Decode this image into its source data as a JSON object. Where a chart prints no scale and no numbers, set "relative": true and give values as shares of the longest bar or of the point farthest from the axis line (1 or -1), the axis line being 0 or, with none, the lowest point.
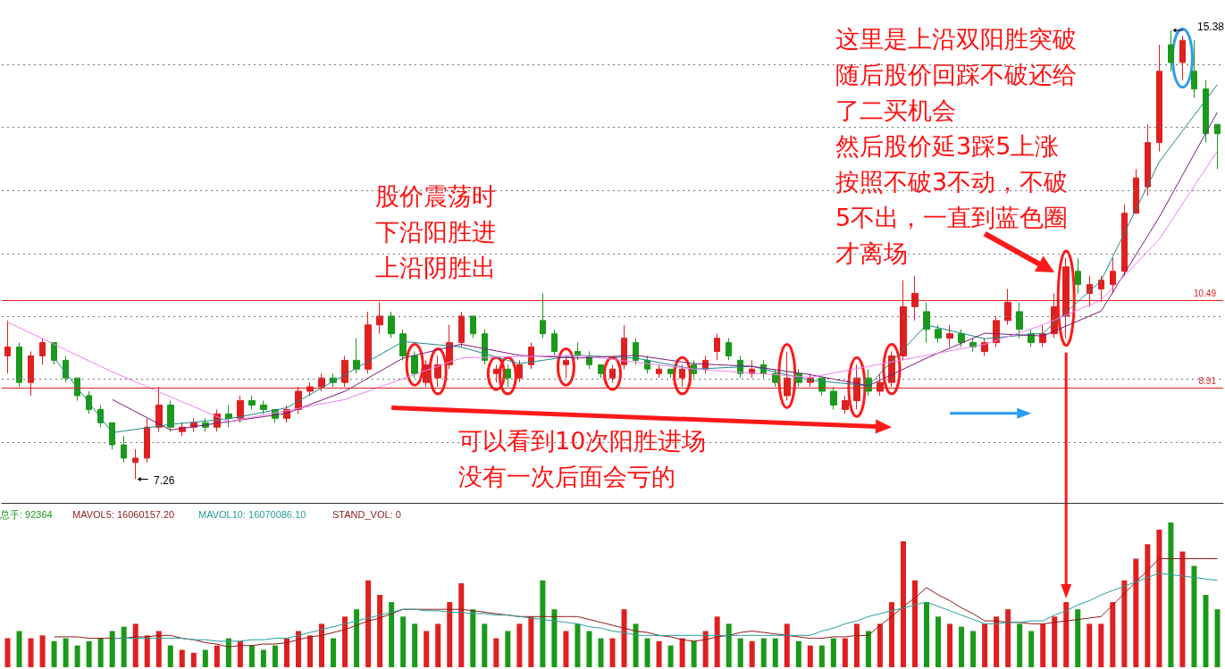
{
  "chart_data": [
    {
      "type": "candlestick",
      "categories": [
        null,
        null,
        null,
        null,
        null,
        null,
        null,
        null,
        null,
        null,
        null,
        null,
        null,
        null,
        null,
        null,
        null,
        null,
        null,
        null,
        null,
        null,
        null,
        null,
        null,
        null,
        null,
        null,
        null,
        null,
        null,
        null,
        null,
        null,
        null,
        null,
        null,
        null,
        null,
        null,
        null,
        null,
        null,
        null,
        null,
        null,
        null,
        null,
        null,
        null,
        null,
        null,
        null,
        null,
        null,
        null,
        null,
        null,
        null,
        null,
        null,
        null,
        null,
        null,
        null,
        null,
        null,
        null,
        null,
        null,
        null,
        null,
        null,
        null,
        null,
        null,
        null,
        null,
        null,
        null,
        null,
        null,
        null,
        null,
        null,
        null,
        null,
        null,
        null,
        null,
        null,
        null,
        null,
        null,
        null,
        null,
        null,
        null,
        null,
        null,
        null,
        null,
        null,
        null,
        null
      ],
      "ohlc": [
        [
          9.49,
          10.13,
          9.17,
          9.65
        ],
        [
          9.65,
          9.73,
          8.93,
          9.01
        ],
        [
          9.01,
          9.57,
          8.77,
          9.49
        ],
        [
          9.49,
          9.81,
          9.33,
          9.73
        ],
        [
          9.73,
          9.73,
          9.33,
          9.41
        ],
        [
          9.41,
          9.49,
          9.01,
          9.09
        ],
        [
          9.09,
          9.09,
          8.68,
          8.77
        ],
        [
          8.77,
          8.85,
          8.44,
          8.52
        ],
        [
          8.52,
          8.6,
          8.2,
          8.28
        ],
        [
          8.28,
          8.28,
          7.8,
          7.88
        ],
        [
          7.88,
          8.04,
          7.56,
          7.64
        ],
        [
          7.56,
          7.8,
          7.26,
          7.64
        ],
        [
          7.64,
          8.36,
          7.56,
          8.2
        ],
        [
          8.2,
          8.93,
          8.12,
          8.6
        ],
        [
          8.6,
          8.68,
          8.12,
          8.2
        ],
        [
          8.12,
          8.28,
          8.04,
          8.2
        ],
        [
          8.2,
          8.36,
          8.12,
          8.28
        ],
        [
          8.28,
          8.36,
          8.12,
          8.2
        ],
        [
          8.2,
          8.52,
          8.12,
          8.44
        ],
        [
          8.44,
          8.6,
          8.2,
          8.36
        ],
        [
          8.36,
          8.77,
          8.28,
          8.68
        ],
        [
          8.68,
          8.77,
          8.52,
          8.6
        ],
        [
          8.6,
          8.68,
          8.44,
          8.52
        ],
        [
          8.52,
          8.52,
          8.28,
          8.36
        ],
        [
          8.36,
          8.6,
          8.28,
          8.52
        ],
        [
          8.52,
          8.93,
          8.44,
          8.85
        ],
        [
          8.85,
          9.01,
          8.77,
          8.93
        ],
        [
          8.93,
          9.17,
          8.85,
          9.09
        ],
        [
          9.09,
          9.17,
          8.93,
          9.01
        ],
        [
          9.01,
          9.49,
          8.93,
          9.41
        ],
        [
          9.41,
          9.81,
          9.17,
          9.25
        ],
        [
          9.25,
          10.29,
          9.17,
          10.05
        ],
        [
          10.05,
          10.46,
          9.89,
          10.21
        ],
        [
          10.21,
          10.29,
          9.81,
          9.89
        ],
        [
          9.89,
          9.97,
          9.41,
          9.49
        ],
        [
          9.49,
          9.57,
          9.09,
          9.17
        ],
        [
          9.01,
          9.41,
          8.93,
          9.33
        ],
        [
          9.09,
          9.49,
          8.93,
          9.33
        ],
        [
          9.33,
          10.05,
          9.25,
          9.73
        ],
        [
          9.73,
          10.29,
          9.65,
          10.21
        ],
        [
          10.21,
          10.21,
          9.81,
          9.89
        ],
        [
          9.89,
          9.97,
          9.33,
          9.41
        ],
        [
          9.17,
          9.33,
          9.01,
          9.25
        ],
        [
          9.25,
          9.33,
          8.93,
          9.09
        ],
        [
          9.09,
          9.41,
          9.01,
          9.33
        ],
        [
          9.33,
          9.73,
          9.25,
          9.65
        ],
        [
          10.13,
          10.62,
          9.81,
          9.89
        ],
        [
          9.89,
          9.97,
          9.49,
          9.57
        ],
        [
          9.33,
          9.49,
          9.09,
          9.41
        ],
        [
          9.57,
          9.73,
          9.41,
          9.49
        ],
        [
          9.49,
          9.57,
          9.25,
          9.33
        ],
        [
          9.33,
          9.33,
          9.09,
          9.17
        ],
        [
          9.09,
          9.33,
          9.01,
          9.25
        ],
        [
          9.33,
          10.05,
          9.25,
          9.81
        ],
        [
          9.73,
          9.81,
          9.33,
          9.41
        ],
        [
          9.41,
          9.49,
          9.17,
          9.25
        ],
        [
          9.17,
          9.33,
          9.09,
          9.25
        ],
        [
          9.25,
          9.25,
          9.09,
          9.17
        ],
        [
          9.09,
          9.33,
          8.93,
          9.25
        ],
        [
          9.33,
          9.41,
          9.09,
          9.17
        ],
        [
          9.25,
          9.49,
          9.17,
          9.41
        ],
        [
          9.57,
          9.89,
          9.41,
          9.81
        ],
        [
          9.73,
          9.81,
          9.41,
          9.49
        ],
        [
          9.41,
          9.49,
          9.09,
          9.17
        ],
        [
          9.17,
          9.41,
          9.09,
          9.25
        ],
        [
          9.33,
          9.41,
          9.09,
          9.17
        ],
        [
          9.17,
          9.25,
          8.93,
          9.01
        ],
        [
          8.77,
          9.57,
          8.68,
          9.09
        ],
        [
          9.17,
          9.25,
          8.93,
          9.01
        ],
        [
          9.01,
          9.17,
          8.93,
          9.09
        ],
        [
          9.09,
          9.09,
          8.77,
          8.85
        ],
        [
          8.85,
          8.93,
          8.52,
          8.6
        ],
        [
          8.52,
          8.77,
          8.44,
          8.68
        ],
        [
          8.68,
          9.33,
          8.52,
          9.09
        ],
        [
          9.09,
          9.25,
          8.77,
          8.85
        ],
        [
          8.85,
          9.17,
          8.77,
          9.01
        ],
        [
          9.01,
          9.57,
          8.93,
          9.49
        ],
        [
          9.49,
          10.86,
          9.41,
          10.38
        ],
        [
          10.38,
          10.94,
          10.13,
          10.62
        ],
        [
          10.29,
          10.46,
          9.73,
          9.97
        ],
        [
          9.97,
          10.05,
          9.73,
          9.81
        ],
        [
          9.81,
          10.05,
          9.65,
          9.89
        ],
        [
          9.89,
          9.97,
          9.65,
          9.73
        ],
        [
          9.73,
          9.81,
          9.57,
          9.65
        ],
        [
          9.57,
          9.81,
          9.49,
          9.73
        ],
        [
          9.73,
          10.21,
          9.65,
          10.13
        ],
        [
          10.13,
          10.7,
          10.05,
          10.46
        ],
        [
          10.29,
          10.46,
          9.81,
          9.97
        ],
        [
          9.89,
          9.97,
          9.65,
          9.73
        ],
        [
          9.73,
          10.05,
          9.65,
          9.89
        ],
        [
          9.89,
          10.62,
          9.81,
          10.38
        ],
        [
          10.21,
          11.26,
          9.81,
          11.1
        ],
        [
          11.02,
          11.26,
          10.62,
          10.78
        ],
        [
          10.62,
          10.94,
          10.38,
          10.78
        ],
        [
          10.7,
          10.94,
          10.46,
          10.86
        ],
        [
          10.78,
          11.26,
          10.62,
          11.02
        ],
        [
          11.02,
          12.23,
          10.94,
          12.07
        ],
        [
          12.07,
          12.87,
          12.07,
          12.71
        ],
        [
          12.55,
          13.68,
          12.39,
          13.35
        ],
        [
          13.35,
          15.12,
          13.19,
          14.64
        ],
        [
          15.12,
          15.38,
          14.64,
          14.8
        ],
        [
          14.8,
          15.28,
          14.48,
          15.2
        ],
        [
          14.64,
          15.2,
          14.16,
          14.32
        ],
        [
          14.32,
          14.48,
          13.35,
          13.51
        ],
        [
          13.68,
          13.68,
          12.87,
          13.51
        ]
      ],
      "colors": [
        "#e02020",
        "#1a9a1a",
        "#e02020",
        "#e02020",
        "#1a9a1a",
        "#1a9a1a",
        "#1a9a1a",
        "#1a9a1a",
        "#1a9a1a",
        "#1a9a1a",
        "#1a9a1a",
        "#e02020",
        "#e02020",
        "#e02020",
        "#1a9a1a",
        "#e02020",
        "#e02020",
        "#1a9a1a",
        "#e02020",
        "#1a9a1a",
        "#e02020",
        "#1a9a1a",
        "#1a9a1a",
        "#1a9a1a",
        "#e02020",
        "#e02020",
        "#e02020",
        "#e02020",
        "#1a9a1a",
        "#e02020",
        "#1a9a1a",
        "#e02020",
        "#e02020",
        "#1a9a1a",
        "#1a9a1a",
        "#1a9a1a",
        "#e02020",
        "#e02020",
        "#e02020",
        "#e02020",
        "#1a9a1a",
        "#1a9a1a",
        "#e02020",
        "#1a9a1a",
        "#e02020",
        "#e02020",
        "#1a9a1a",
        "#1a9a1a",
        "#e02020",
        "#1a9a1a",
        "#1a9a1a",
        "#1a9a1a",
        "#e02020",
        "#e02020",
        "#1a9a1a",
        "#1a9a1a",
        "#e02020",
        "#1a9a1a",
        "#e02020",
        "#1a9a1a",
        "#e02020",
        "#e02020",
        "#1a9a1a",
        "#1a9a1a",
        "#e02020",
        "#1a9a1a",
        "#1a9a1a",
        "#e02020",
        "#1a9a1a",
        "#e02020",
        "#1a9a1a",
        "#1a9a1a",
        "#e02020",
        "#e02020",
        "#1a9a1a",
        "#e02020",
        "#e02020",
        "#e02020",
        "#e02020",
        "#1a9a1a",
        "#1a9a1a",
        "#e02020",
        "#1a9a1a",
        "#1a9a1a",
        "#e02020",
        "#e02020",
        "#e02020",
        "#1a9a1a",
        "#1a9a1a",
        "#e02020",
        "#e02020",
        "#e02020",
        "#1a9a1a",
        "#e02020",
        "#e02020",
        "#e02020",
        "#e02020",
        "#e02020",
        "#e02020",
        "#e02020",
        "#1a9a1a",
        "#e02020",
        "#1a9a1a",
        "#1a9a1a",
        "#1a9a1a"
      ],
      "series": [
        {
          "type": "line",
          "color": "#1a8a8a",
          "values": [
            null,
            null,
            null,
            null,
            9.45,
            9.18,
            8.91,
            8.64,
            8.37,
            8.1,
            8.13,
            8.16,
            8.19,
            8.22,
            8.25,
            8.27,
            8.29,
            8.31,
            8.33,
            8.35,
            8.39,
            8.43,
            8.47,
            8.51,
            8.55,
            8.67,
            8.79,
            8.91,
            9.03,
            9.15,
            9.27,
            9.39,
            9.51,
            9.63,
            9.75,
            9.73,
            9.71,
            9.69,
            9.67,
            9.65,
            9.59,
            9.53,
            9.47,
            9.41,
            9.35,
            9.38,
            9.41,
            9.44,
            9.47,
            9.5,
            9.49,
            9.48,
            9.47,
            9.46,
            9.45,
            9.41,
            9.37,
            9.33,
            9.29,
            9.25,
            9.26,
            9.27,
            9.28,
            9.29,
            9.3,
            9.25,
            9.2,
            9.15,
            9.1,
            9.05,
            9.03,
            9.01,
            8.99,
            8.97,
            8.95,
            9.17,
            9.39,
            9.61,
            9.83,
            10.05,
            10.0,
            9.95,
            9.9,
            9.85,
            9.8,
            9.82,
            9.84,
            9.86,
            9.88,
            9.9,
            10.09,
            10.28,
            10.47,
            10.66,
            10.85,
            11.28,
            11.71,
            12.14,
            12.57,
            13.0,
            13.28,
            13.56,
            13.84,
            14.12,
            14.4
          ]
        },
        {
          "type": "line",
          "color": "#7a1a7a",
          "values": [
            null,
            null,
            null,
            null,
            null,
            null,
            null,
            null,
            null,
            8.7,
            8.59,
            8.48,
            8.37,
            8.26,
            8.15,
            8.18,
            8.21,
            8.24,
            8.27,
            8.3,
            8.33,
            8.36,
            8.39,
            8.42,
            8.45,
            8.53,
            8.61,
            8.69,
            8.77,
            8.85,
            8.97,
            9.09,
            9.21,
            9.33,
            9.45,
            9.5,
            9.55,
            9.6,
            9.65,
            9.7,
            9.66,
            9.62,
            9.58,
            9.54,
            9.5,
            9.49,
            9.48,
            9.47,
            9.46,
            9.45,
            9.46,
            9.47,
            9.48,
            9.49,
            9.5,
            9.47,
            9.44,
            9.41,
            9.38,
            9.35,
            9.34,
            9.33,
            9.32,
            9.31,
            9.3,
            9.27,
            9.24,
            9.21,
            9.18,
            9.15,
            9.11,
            9.07,
            9.03,
            8.99,
            8.95,
            9.05,
            9.15,
            9.25,
            9.35,
            9.45,
            9.54,
            9.63,
            9.72,
            9.81,
            9.9,
            9.89,
            9.88,
            9.87,
            9.86,
            9.85,
            9.94,
            10.03,
            10.12,
            10.21,
            10.3,
            10.64,
            10.98,
            11.32,
            11.66,
            12.0,
            12.38,
            12.76,
            13.14,
            13.52,
            13.9
          ]
        },
        {
          "type": "line",
          "color": "#f080f0",
          "values": [
            10.1,
            10.0,
            9.9,
            9.8,
            9.7,
            9.6,
            9.5,
            9.4,
            9.3,
            9.2,
            9.11,
            9.02,
            8.93,
            8.84,
            8.75,
            8.66,
            8.57,
            8.48,
            8.39,
            8.3,
            8.34,
            8.38,
            8.42,
            8.46,
            8.5,
            8.54,
            8.58,
            8.62,
            8.66,
            8.7,
            8.78,
            8.85,
            8.93,
            9.0,
            9.08,
            9.15,
            9.23,
            9.3,
            9.38,
            9.45,
            9.46,
            9.46,
            9.47,
            9.47,
            9.48,
            9.48,
            9.49,
            9.49,
            9.5,
            9.5,
            9.48,
            9.45,
            9.43,
            9.4,
            9.38,
            9.35,
            9.33,
            9.3,
            9.28,
            9.25,
            9.24,
            9.22,
            9.21,
            9.19,
            9.18,
            9.16,
            9.15,
            9.13,
            9.12,
            9.1,
            9.14,
            9.18,
            9.22,
            9.26,
            9.3,
            9.34,
            9.38,
            9.42,
            9.46,
            9.5,
            9.54,
            9.58,
            9.62,
            9.66,
            9.7,
            9.77,
            9.84,
            9.91,
            9.98,
            10.05,
            10.14,
            10.23,
            10.32,
            10.41,
            10.5,
            10.72,
            10.94,
            11.16,
            11.38,
            11.6,
            11.92,
            12.24,
            12.56,
            12.88,
            13.2
          ]
        }
      ],
      "ylim": [
        6.83,
        15.93
      ],
      "yticks": [
        {
          "value": 7.93,
          "label": null
        },
        {
          "value": 8.91,
          "label": "8.91"
        },
        {
          "value": 9.07,
          "label": null
        },
        {
          "value": 10.21,
          "label": null
        },
        {
          "value": 10.49,
          "label": "10.49"
        },
        {
          "value": 11.34,
          "label": null
        },
        {
          "value": 12.48,
          "label": null
        },
        {
          "value": 13.63,
          "label": null
        },
        {
          "value": 14.77,
          "label": null
        }
      ],
      "grid": "y",
      "tick_labels": "y",
      "annotations": [
        "股价震荡时",
        "下沿阳胜进",
        "上沿阴胜出",
        "这里是上沿双阳胜突破",
        "随后股价回踩不破还给",
        "了二买机会",
        "然后股价延3踩5上涨",
        "按照不破3不动，不破",
        "5不出，一直到蓝色圈",
        "才离场",
        "可以看到10次阳胜进场",
        "没有一次后面会亏的",
        "15.38",
        "7.26"
      ]
    },
    {
      "type": "bar",
      "relative": true,
      "categories": [
        null,
        null,
        null,
        null,
        null,
        null,
        null,
        null,
        null,
        null,
        null,
        null,
        null,
        null,
        null,
        null,
        null,
        null,
        null,
        null,
        null,
        null,
        null,
        null,
        null,
        null,
        null,
        null,
        null,
        null,
        null,
        null,
        null,
        null,
        null,
        null,
        null,
        null,
        null,
        null,
        null,
        null,
        null,
        null,
        null,
        null,
        null,
        null,
        null,
        null,
        null,
        null,
        null,
        null,
        null,
        null,
        null,
        null,
        null,
        null,
        null,
        null,
        null,
        null,
        null,
        null,
        null,
        null,
        null,
        null,
        null,
        null,
        null,
        null,
        null,
        null,
        null,
        null,
        null,
        null,
        null,
        null,
        null,
        null,
        null,
        null,
        null,
        null,
        null,
        null,
        null,
        null,
        null,
        null,
        null,
        null,
        null,
        null,
        null,
        null,
        null,
        null,
        null,
        null,
        null
      ],
      "series": [
        {
          "name": "总手: 92364",
          "color": "#1a9a1a",
          "values": [
            0.2,
            0.25,
            0.2,
            0.22,
            0.18,
            0.2,
            0.15,
            0.18,
            0.2,
            0.25,
            0.28,
            0.3,
            0.22,
            0.25,
            0.15,
            0.12,
            0.1,
            0.12,
            0.15,
            0.2,
            0.18,
            0.15,
            0.12,
            0.15,
            0.2,
            0.25,
            0.22,
            0.3,
            0.2,
            0.35,
            0.4,
            0.6,
            0.5,
            0.45,
            0.35,
            0.3,
            0.25,
            0.3,
            0.45,
            0.58,
            0.4,
            0.3,
            0.2,
            0.25,
            0.3,
            0.35,
            0.6,
            0.4,
            0.25,
            0.3,
            0.25,
            0.2,
            0.2,
            0.4,
            0.3,
            0.2,
            0.18,
            0.15,
            0.2,
            0.18,
            0.25,
            0.35,
            0.3,
            0.2,
            0.18,
            0.2,
            0.2,
            0.3,
            0.18,
            0.15,
            0.15,
            0.2,
            0.2,
            0.3,
            0.25,
            0.3,
            0.45,
            0.87,
            0.6,
            0.45,
            0.35,
            0.3,
            0.28,
            0.25,
            0.3,
            0.35,
            0.4,
            0.3,
            0.25,
            0.3,
            0.35,
            0.45,
            0.4,
            0.3,
            0.3,
            0.45,
            0.6,
            0.75,
            0.85,
            0.95,
            1,
            0.8,
            0.7,
            0.5,
            0.4
          ],
          "colors": [
            "#e02020",
            "#1a9a1a",
            "#e02020",
            "#e02020",
            "#1a9a1a",
            "#1a9a1a",
            "#1a9a1a",
            "#1a9a1a",
            "#1a9a1a",
            "#1a9a1a",
            "#1a9a1a",
            "#e02020",
            "#e02020",
            "#e02020",
            "#1a9a1a",
            "#e02020",
            "#e02020",
            "#1a9a1a",
            "#e02020",
            "#1a9a1a",
            "#e02020",
            "#1a9a1a",
            "#1a9a1a",
            "#1a9a1a",
            "#e02020",
            "#e02020",
            "#e02020",
            "#e02020",
            "#1a9a1a",
            "#e02020",
            "#1a9a1a",
            "#e02020",
            "#e02020",
            "#1a9a1a",
            "#1a9a1a",
            "#1a9a1a",
            "#e02020",
            "#e02020",
            "#e02020",
            "#e02020",
            "#1a9a1a",
            "#1a9a1a",
            "#e02020",
            "#1a9a1a",
            "#e02020",
            "#e02020",
            "#1a9a1a",
            "#1a9a1a",
            "#e02020",
            "#1a9a1a",
            "#1a9a1a",
            "#1a9a1a",
            "#e02020",
            "#e02020",
            "#1a9a1a",
            "#1a9a1a",
            "#e02020",
            "#1a9a1a",
            "#e02020",
            "#1a9a1a",
            "#e02020",
            "#e02020",
            "#1a9a1a",
            "#1a9a1a",
            "#e02020",
            "#1a9a1a",
            "#1a9a1a",
            "#e02020",
            "#1a9a1a",
            "#e02020",
            "#1a9a1a",
            "#1a9a1a",
            "#e02020",
            "#e02020",
            "#1a9a1a",
            "#e02020",
            "#e02020",
            "#e02020",
            "#e02020",
            "#1a9a1a",
            "#1a9a1a",
            "#e02020",
            "#1a9a1a",
            "#1a9a1a",
            "#e02020",
            "#e02020",
            "#e02020",
            "#1a9a1a",
            "#1a9a1a",
            "#e02020",
            "#e02020",
            "#e02020",
            "#1a9a1a",
            "#e02020",
            "#e02020",
            "#e02020",
            "#e02020",
            "#e02020",
            "#e02020",
            "#e02020",
            "#1a9a1a",
            "#e02020",
            "#1a9a1a",
            "#1a9a1a",
            "#1a9a1a"
          ]
        },
        {
          "type": "line",
          "name": "MAVOL5: 16060157.20",
          "color": "#8b1a1a",
          "values": [
            null,
            null,
            null,
            null,
            0.21,
            0.21,
            0.21,
            0.2,
            0.2,
            0.2,
            0.2,
            0.21,
            0.21,
            0.22,
            0.22,
            0.2,
            0.19,
            0.17,
            0.16,
            0.14,
            0.15,
            0.15,
            0.16,
            0.16,
            0.17,
            0.19,
            0.21,
            0.22,
            0.24,
            0.26,
            0.29,
            0.32,
            0.34,
            0.37,
            0.4,
            0.4,
            0.4,
            0.4,
            0.4,
            0.4,
            0.39,
            0.38,
            0.37,
            0.36,
            0.35,
            0.35,
            0.35,
            0.35,
            0.35,
            0.35,
            0.33,
            0.31,
            0.29,
            0.27,
            0.25,
            0.24,
            0.22,
            0.21,
            0.19,
            0.18,
            0.19,
            0.21,
            0.22,
            0.24,
            0.25,
            0.24,
            0.23,
            0.22,
            0.21,
            0.2,
            0.2,
            0.21,
            0.21,
            0.22,
            0.22,
            0.29,
            0.35,
            0.42,
            0.48,
            0.55,
            0.5,
            0.46,
            0.41,
            0.37,
            0.32,
            0.32,
            0.31,
            0.31,
            0.3,
            0.3,
            0.31,
            0.32,
            0.33,
            0.34,
            0.35,
            0.43,
            0.51,
            0.59,
            0.67,
            0.75,
            0.75,
            0.75,
            0.75,
            0.75,
            0.75
          ]
        },
        {
          "type": "line",
          "name": "MAVOL10: 16070086.10",
          "color": "#2a9d9d",
          "values": [
            null,
            null,
            null,
            null,
            null,
            null,
            null,
            null,
            null,
            0.2,
            0.2,
            0.2,
            0.2,
            0.2,
            0.2,
            0.2,
            0.19,
            0.19,
            0.18,
            0.18,
            0.18,
            0.19,
            0.19,
            0.2,
            0.2,
            0.22,
            0.24,
            0.26,
            0.28,
            0.3,
            0.32,
            0.34,
            0.36,
            0.38,
            0.4,
            0.4,
            0.39,
            0.39,
            0.38,
            0.38,
            0.37,
            0.37,
            0.36,
            0.36,
            0.35,
            0.34,
            0.33,
            0.32,
            0.31,
            0.3,
            0.28,
            0.27,
            0.25,
            0.24,
            0.22,
            0.22,
            0.22,
            0.22,
            0.22,
            0.22,
            0.22,
            0.22,
            0.22,
            0.22,
            0.22,
            0.22,
            0.22,
            0.22,
            0.22,
            0.22,
            0.25,
            0.27,
            0.3,
            0.32,
            0.35,
            0.37,
            0.39,
            0.41,
            0.43,
            0.45,
            0.42,
            0.39,
            0.36,
            0.33,
            0.3,
            0.3,
            0.31,
            0.31,
            0.32,
            0.32,
            0.36,
            0.39,
            0.43,
            0.46,
            0.5,
            0.53,
            0.56,
            0.59,
            0.62,
            0.65,
            0.64,
            0.63,
            0.62,
            0.61,
            0.6
          ]
        }
      ],
      "tick_labels": false,
      "annotations": [
        "STAND_VOL: 0"
      ]
    }
  ]
}
